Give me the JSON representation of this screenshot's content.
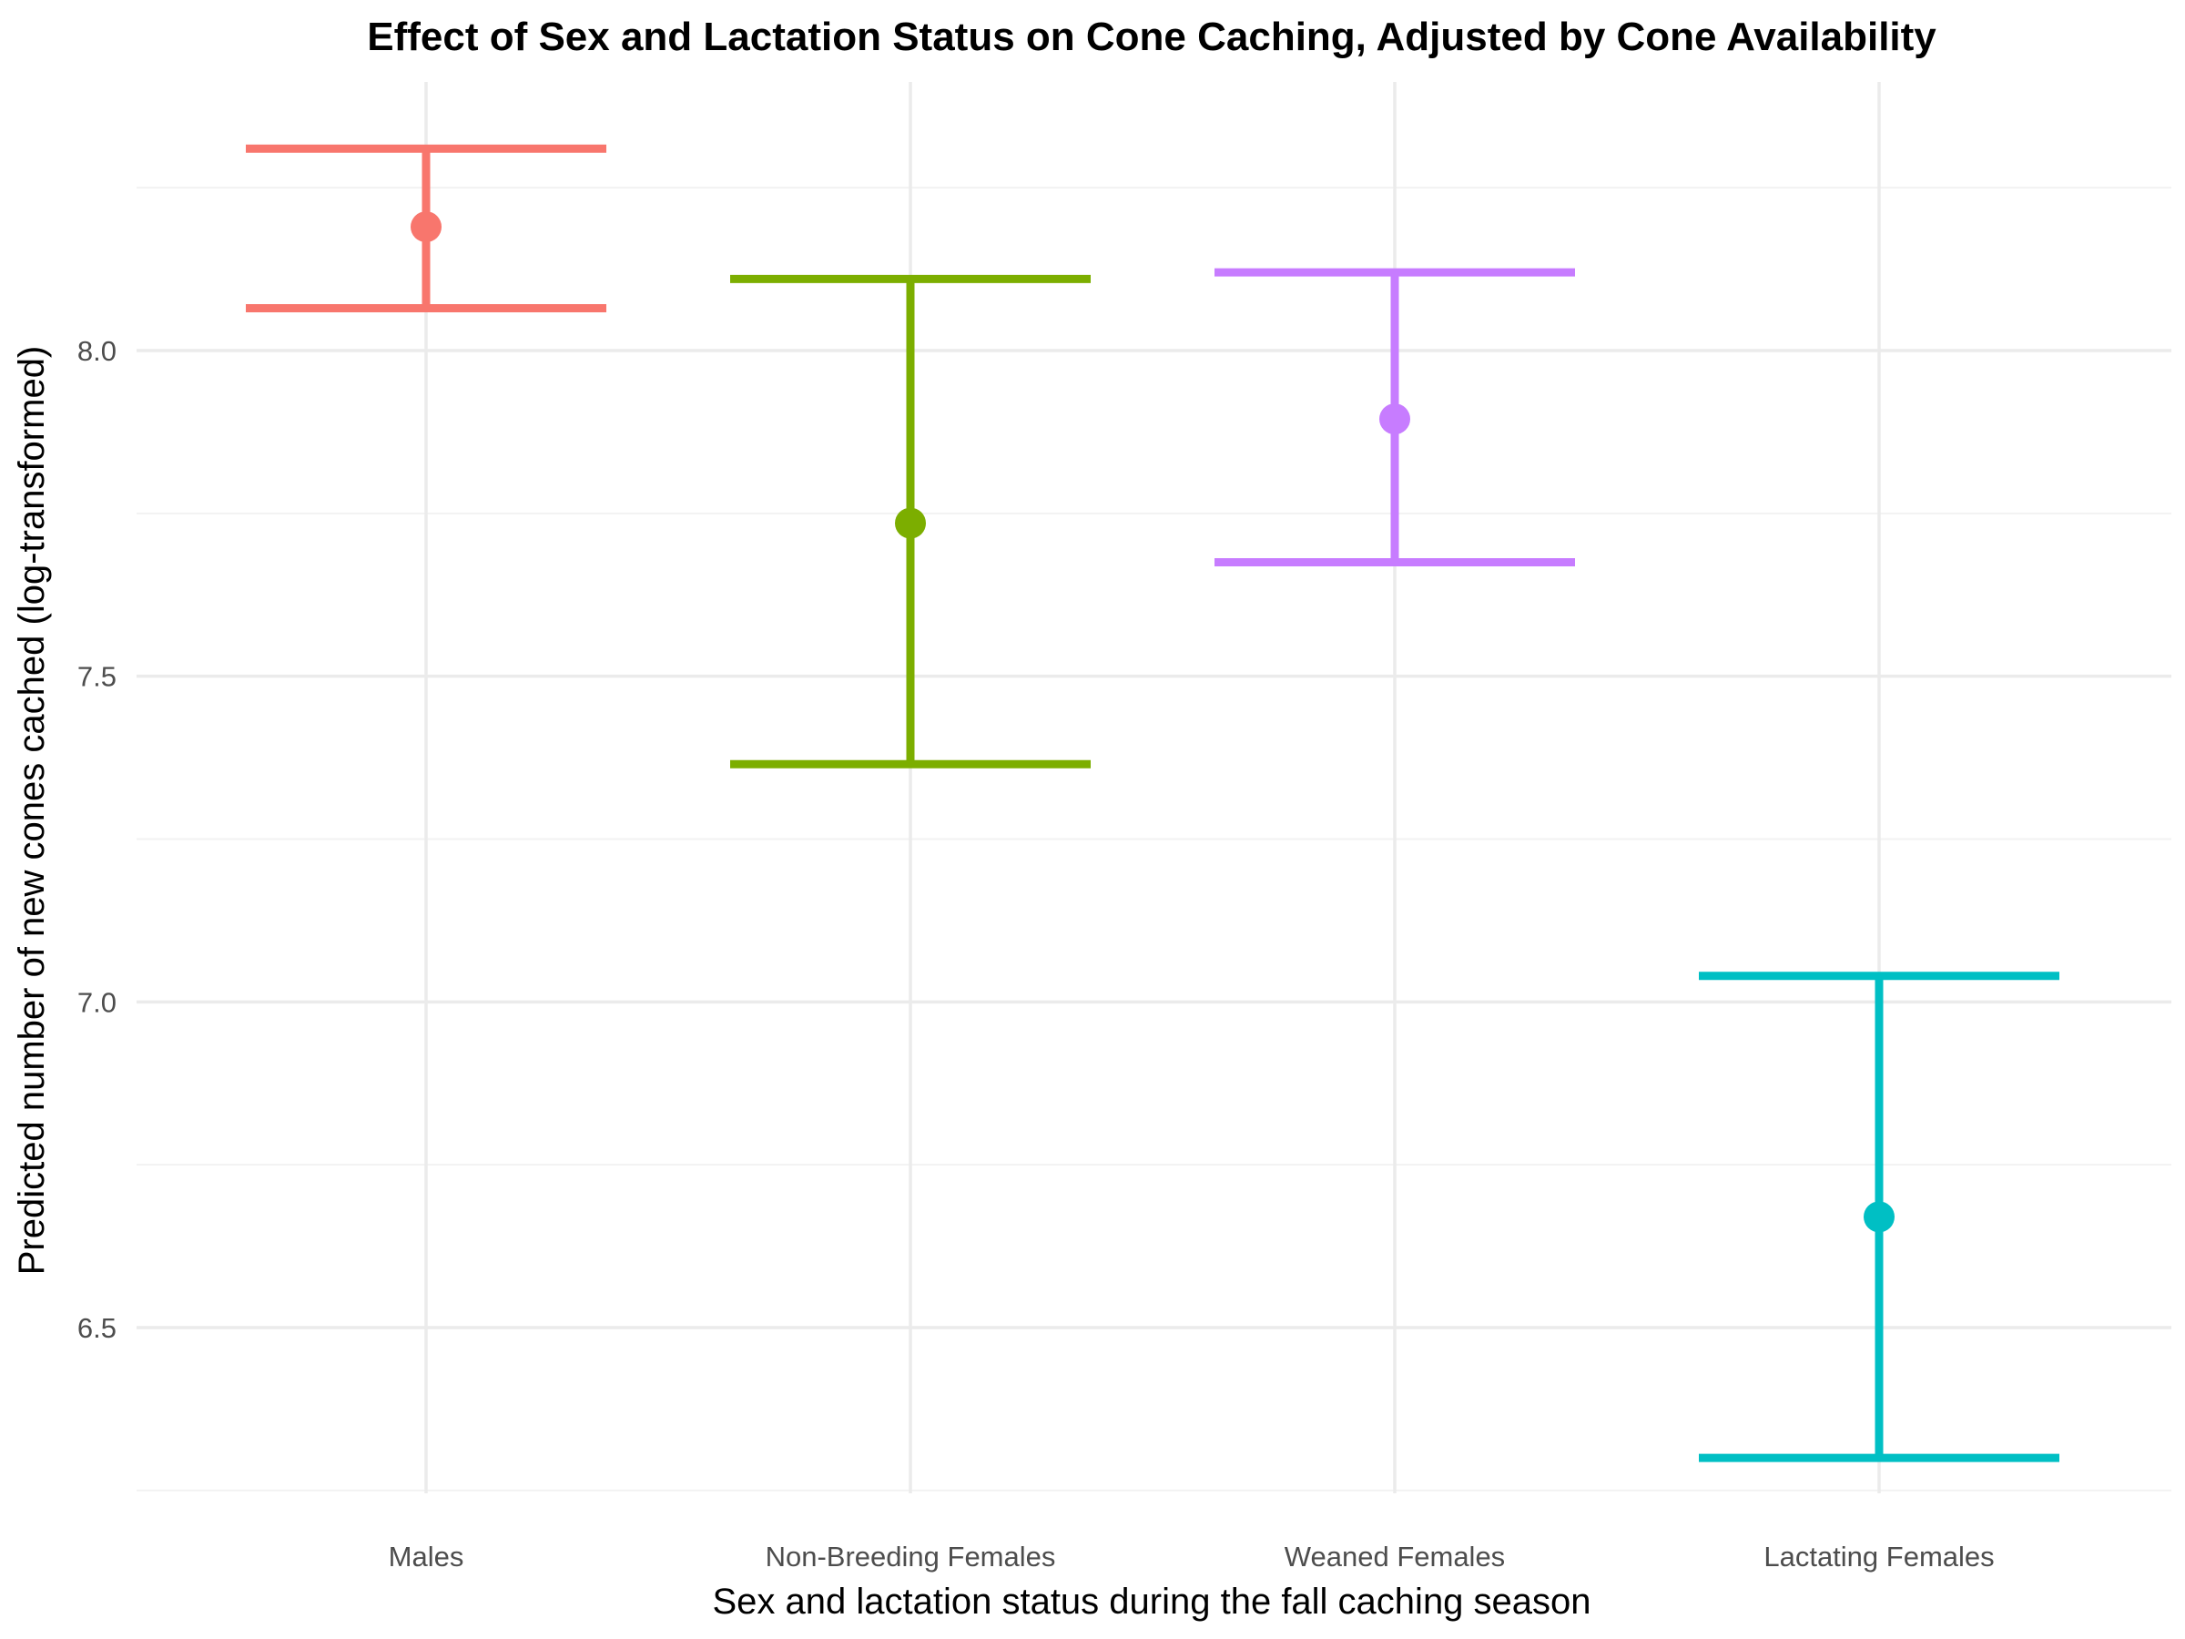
{
  "chart_data": {
    "type": "errorbar",
    "title": "Effect of Sex and Lactation Status on Cone Caching, Adjusted by Cone Availability",
    "xlabel": "Sex and lactation status during the fall caching season",
    "ylabel": "Predicted number of new cones cached (log-transformed)",
    "categories": [
      "Males",
      "Non-Breeding Females",
      "Weaned Females",
      "Lactating Females"
    ],
    "points": [
      {
        "category": "Males",
        "estimate": 8.19,
        "lower": 8.065,
        "upper": 8.31,
        "color": "#F8766D"
      },
      {
        "category": "Non-Breeding Females",
        "estimate": 7.735,
        "lower": 7.365,
        "upper": 8.11,
        "color": "#7CAE00"
      },
      {
        "category": "Weaned Females",
        "estimate": 7.895,
        "lower": 7.675,
        "upper": 8.12,
        "color": "#C77CFF"
      },
      {
        "category": "Lactating Females",
        "estimate": 6.67,
        "lower": 6.3,
        "upper": 7.04,
        "color": "#00BFC4"
      }
    ],
    "yticks": [
      "6.5",
      "7.0",
      "7.5",
      "8.0"
    ],
    "ylim": [
      6.25,
      8.35
    ],
    "grid": true,
    "legend": "none"
  }
}
